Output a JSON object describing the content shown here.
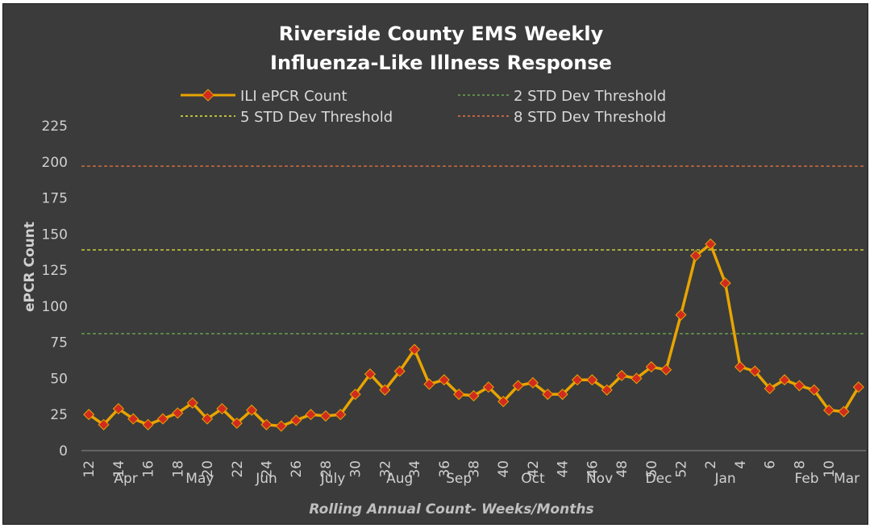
{
  "chart_data": {
    "type": "line",
    "title_line1": "Riverside County EMS Weekly",
    "title_line2": "Influenza-Like Illness Response",
    "ylabel": "ePCR Count",
    "xlabel": "Rolling Annual Count- Weeks/Months",
    "ylim": [
      0,
      225
    ],
    "yticks": [
      "0",
      "25",
      "50",
      "75",
      "100",
      "125",
      "150",
      "175",
      "200",
      "225"
    ],
    "week_tick_labels": [
      "12",
      "14",
      "16",
      "18",
      "20",
      "22",
      "24",
      "26",
      "28",
      "30",
      "32",
      "34",
      "36",
      "38",
      "40",
      "42",
      "44",
      "46",
      "48",
      "50",
      "52",
      "2",
      "4",
      "6",
      "8",
      "10"
    ],
    "month_labels": [
      "Apr",
      "May",
      "Jun",
      "July",
      "Aug",
      "Sep",
      "Oct",
      "Nov",
      "Dec",
      "Jan",
      "Feb",
      "Mar"
    ],
    "legend_position": "top",
    "grid": false,
    "series": [
      {
        "name": "ILI ePCR Count",
        "color": "#e8a400",
        "marker_color": "#d12b1f",
        "values": [
          25,
          18,
          29,
          22,
          18,
          22,
          26,
          33,
          22,
          29,
          19,
          28,
          18,
          17,
          21,
          25,
          24,
          25,
          39,
          53,
          42,
          55,
          70,
          46,
          49,
          39,
          38,
          44,
          34,
          45,
          47,
          39,
          39,
          49,
          49,
          42,
          52,
          50,
          58,
          56,
          94,
          135,
          143,
          116,
          58,
          55,
          43,
          49,
          45,
          42,
          28,
          27,
          44
        ]
      }
    ],
    "thresholds": [
      {
        "name": "2 STD Dev Threshold",
        "value": 81,
        "color": "#6aa84f"
      },
      {
        "name": "5 STD Dev Threshold",
        "value": 139,
        "color": "#e8e83c"
      },
      {
        "name": "8 STD Dev Threshold",
        "value": 197,
        "color": "#e8753c"
      }
    ]
  }
}
